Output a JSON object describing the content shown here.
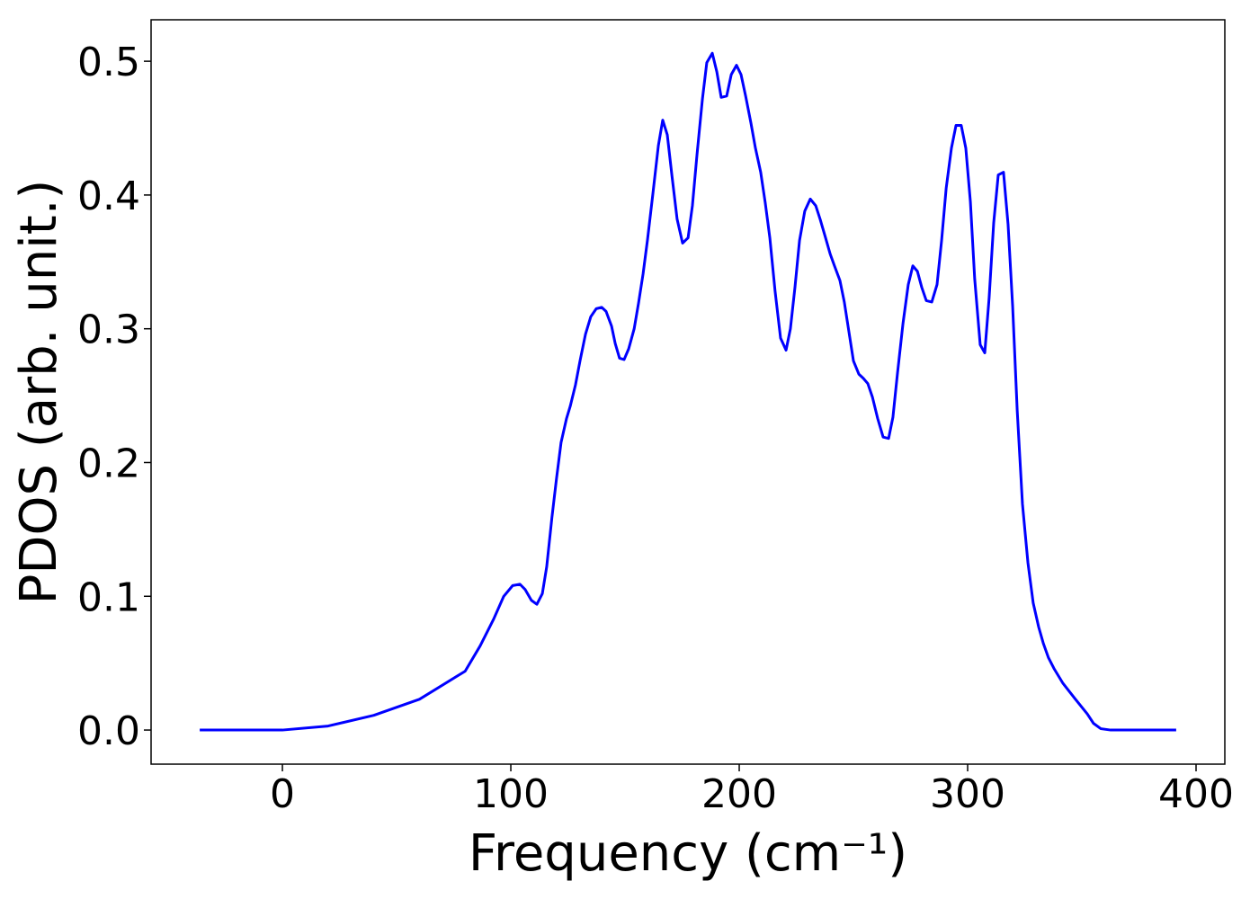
{
  "chart_data": {
    "type": "line",
    "xlabel": "Frequency (cm⁻¹)",
    "ylabel": "PDOS (arb. unit.)",
    "xlim": [
      -57.5,
      412.6
    ],
    "ylim": [
      -0.0255,
      0.531
    ],
    "xticks": [
      0,
      100,
      200,
      300,
      400
    ],
    "yticks": [
      {
        "value": 0,
        "label": "0.0"
      },
      0.1,
      0.2,
      0.3,
      0.4,
      0.5
    ],
    "series": [
      {
        "color": "#0000ff",
        "x": [
          -36.2,
          0,
          20,
          40,
          60,
          80,
          86.6,
          92.5,
          96.9,
          100.8,
          104,
          106.3,
          109,
          111.4,
          113.8,
          115.7,
          118,
          120,
          122,
          124.4,
          126,
          128.3,
          130.3,
          132.7,
          135,
          137.4,
          139.8,
          141.7,
          144.1,
          145.7,
          147.6,
          149.6,
          151.6,
          154,
          155.9,
          157.9,
          159.8,
          162.2,
          164.6,
          166.5,
          168.5,
          170.5,
          172.8,
          175.2,
          177.6,
          179.5,
          181.5,
          183.9,
          185.8,
          188.2,
          190.2,
          192.1,
          194.5,
          196.5,
          198.8,
          200.8,
          202.8,
          205.1,
          207.1,
          209.4,
          211.4,
          213.4,
          215.7,
          218.1,
          220.5,
          222.4,
          224.4,
          226.4,
          228.7,
          231.1,
          233.5,
          235.4,
          237.8,
          239.8,
          241.7,
          244.1,
          246,
          248,
          250,
          252.4,
          254.3,
          256.3,
          258.3,
          260.6,
          263,
          265.4,
          267.3,
          269.3,
          271.7,
          274,
          276,
          278,
          279.9,
          281.9,
          284.3,
          286.6,
          288.6,
          290.6,
          292.9,
          294.9,
          297.2,
          299.2,
          301.2,
          303.1,
          305.5,
          307.5,
          309.4,
          311.4,
          313.4,
          315.7,
          317.7,
          319.7,
          321.7,
          324,
          326.4,
          328.7,
          331.1,
          333.1,
          335.4,
          337.8,
          341.7,
          347.2,
          352.4,
          355.1,
          358.3,
          362.6,
          391.3
        ],
        "values": [
          0,
          0,
          0.003,
          0.011,
          0.023,
          0.044,
          0.063,
          0.083,
          0.1,
          0.108,
          0.109,
          0.105,
          0.097,
          0.094,
          0.102,
          0.122,
          0.159,
          0.188,
          0.215,
          0.233,
          0.242,
          0.258,
          0.276,
          0.296,
          0.309,
          0.315,
          0.316,
          0.313,
          0.302,
          0.289,
          0.278,
          0.277,
          0.285,
          0.3,
          0.319,
          0.341,
          0.366,
          0.401,
          0.437,
          0.456,
          0.445,
          0.415,
          0.382,
          0.364,
          0.368,
          0.392,
          0.43,
          0.472,
          0.499,
          0.506,
          0.492,
          0.473,
          0.474,
          0.49,
          0.497,
          0.49,
          0.474,
          0.454,
          0.435,
          0.417,
          0.394,
          0.368,
          0.328,
          0.293,
          0.284,
          0.3,
          0.331,
          0.366,
          0.388,
          0.397,
          0.392,
          0.382,
          0.368,
          0.356,
          0.347,
          0.336,
          0.32,
          0.298,
          0.276,
          0.266,
          0.263,
          0.259,
          0.249,
          0.233,
          0.219,
          0.218,
          0.234,
          0.267,
          0.304,
          0.333,
          0.347,
          0.343,
          0.331,
          0.321,
          0.32,
          0.333,
          0.366,
          0.405,
          0.435,
          0.452,
          0.452,
          0.435,
          0.395,
          0.337,
          0.288,
          0.282,
          0.323,
          0.379,
          0.415,
          0.417,
          0.378,
          0.317,
          0.239,
          0.169,
          0.125,
          0.095,
          0.077,
          0.065,
          0.054,
          0.046,
          0.035,
          0.023,
          0.012,
          0.005,
          0.001,
          0,
          0
        ]
      }
    ]
  }
}
